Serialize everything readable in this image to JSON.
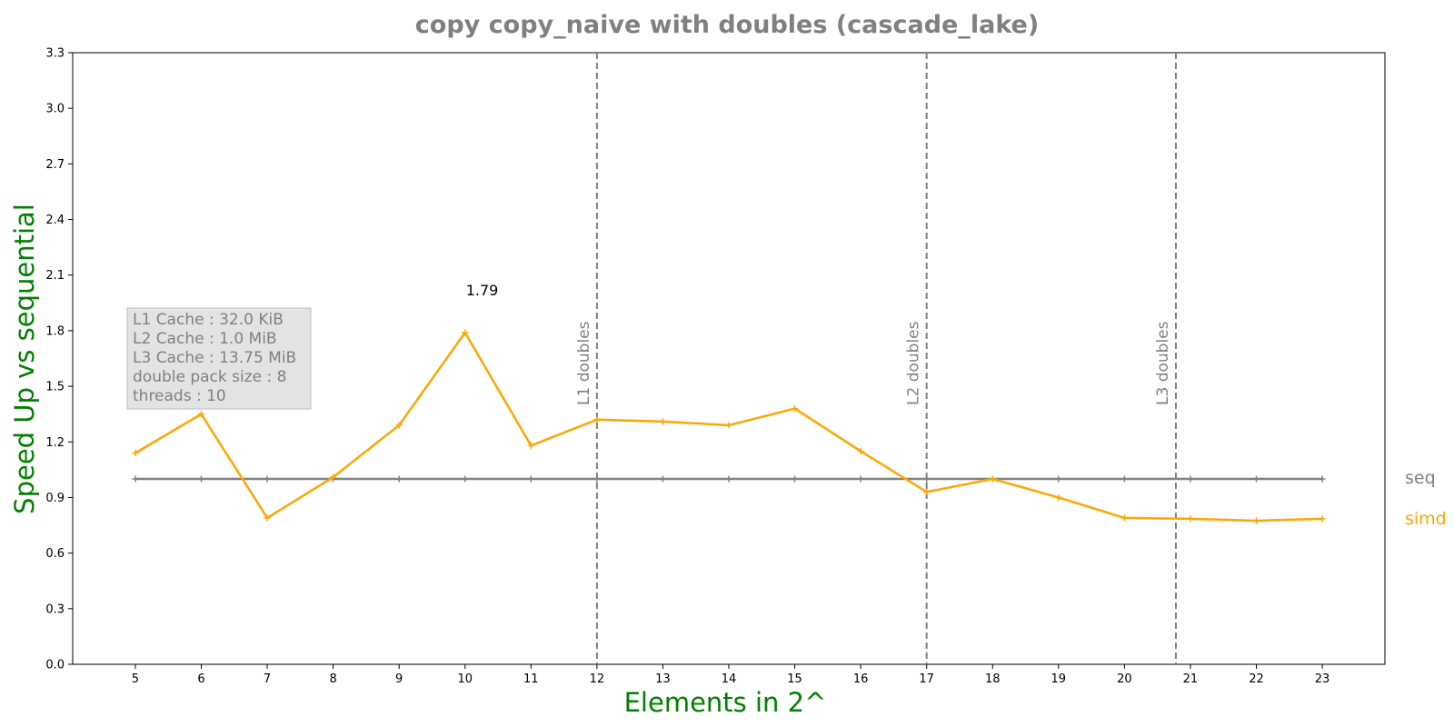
{
  "chart_data": {
    "type": "line",
    "title": "copy copy_naive with doubles  (cascade_lake)",
    "xlabel": "Elements in 2^",
    "ylabel": "Speed Up vs sequential",
    "x": [
      5,
      6,
      7,
      8,
      9,
      10,
      11,
      12,
      13,
      14,
      15,
      16,
      17,
      18,
      19,
      20,
      21,
      22,
      23
    ],
    "xlim": [
      4.05,
      23.95
    ],
    "ylim": [
      0.0,
      3.3
    ],
    "yticks": [
      "0.0",
      "0.3",
      "0.6",
      "0.9",
      "1.2",
      "1.5",
      "1.8",
      "2.1",
      "2.4",
      "2.7",
      "3.0",
      "3.3"
    ],
    "xticks": [
      "5",
      "6",
      "7",
      "8",
      "9",
      "10",
      "11",
      "12",
      "13",
      "14",
      "15",
      "16",
      "17",
      "18",
      "19",
      "20",
      "21",
      "22",
      "23"
    ],
    "grid": false,
    "series": [
      {
        "name": "seq",
        "color": "#808080",
        "values": [
          1.0,
          1.0,
          1.0,
          1.0,
          1.0,
          1.0,
          1.0,
          1.0,
          1.0,
          1.0,
          1.0,
          1.0,
          1.0,
          1.0,
          1.0,
          1.0,
          1.0,
          1.0,
          1.0
        ]
      },
      {
        "name": "simd",
        "color": "#ffa500",
        "values": [
          1.14,
          1.35,
          0.79,
          1.01,
          1.29,
          1.79,
          1.18,
          1.32,
          1.31,
          1.29,
          1.38,
          1.15,
          0.93,
          1.0,
          0.9,
          0.79,
          0.785,
          0.775,
          0.785
        ]
      }
    ],
    "vertical_lines": [
      {
        "x": 12,
        "label": "L1 doubles"
      },
      {
        "x": 17,
        "label": "L2 doubles"
      },
      {
        "x": 20.78,
        "label": "L3 doubles"
      }
    ],
    "annotations": [
      {
        "x": 10,
        "y": 1.79,
        "text": "1.79"
      }
    ],
    "info_box": [
      "L1 Cache : 32.0 KiB",
      "L2 Cache : 1.0 MiB",
      "L3 Cache : 13.75 MiB",
      "double pack size : 8",
      "threads : 10"
    ]
  }
}
